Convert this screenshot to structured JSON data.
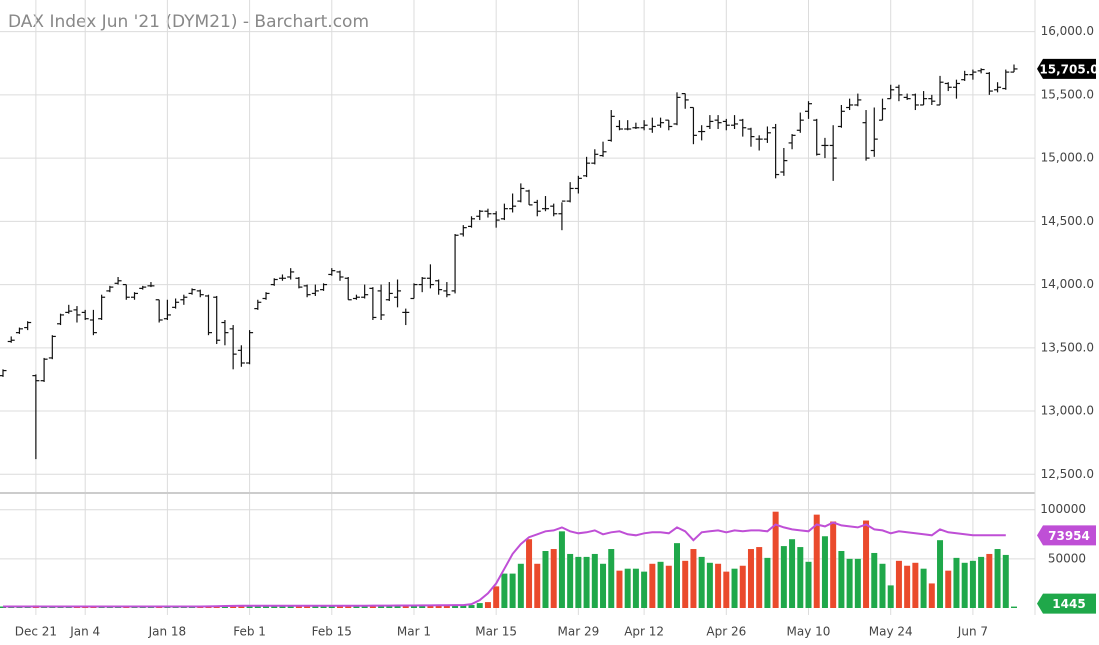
{
  "chart_data": {
    "type": "ohlc",
    "title": "DAX Index Jun '21 (DYM21) - Barchart.com",
    "categories": [
      null,
      null,
      null,
      null,
      "Dec 21",
      null,
      null,
      null,
      null,
      null,
      "Jan 4",
      null,
      null,
      null,
      null,
      null,
      null,
      null,
      null,
      null,
      "Jan 18",
      null,
      null,
      null,
      null,
      null,
      null,
      null,
      null,
      null,
      "Feb 1",
      null,
      null,
      null,
      null,
      null,
      null,
      null,
      null,
      null,
      "Feb 15",
      null,
      null,
      null,
      null,
      null,
      null,
      null,
      null,
      null,
      "Mar 1",
      null,
      null,
      null,
      null,
      null,
      null,
      null,
      null,
      null,
      "Mar 15",
      null,
      null,
      null,
      null,
      null,
      null,
      null,
      null,
      null,
      "Mar 29",
      null,
      null,
      null,
      null,
      null,
      null,
      null,
      "Apr 12",
      null,
      null,
      null,
      null,
      null,
      null,
      null,
      null,
      null,
      "Apr 26",
      null,
      null,
      null,
      null,
      null,
      null,
      null,
      null,
      null,
      "May 10",
      null,
      null,
      null,
      null,
      null,
      null,
      null,
      null,
      null,
      "May 24",
      null,
      null,
      null,
      null,
      null,
      null,
      null,
      null,
      null,
      "Jun 7",
      null,
      null,
      null,
      null,
      null
    ],
    "open": [
      13280,
      13550,
      13620,
      13660,
      13280,
      13240,
      13420,
      13690,
      13780,
      13800,
      13780,
      13720,
      13730,
      13950,
      14010,
      14000,
      13900,
      13970,
      13990,
      13880,
      13730,
      13820,
      13880,
      13930,
      13950,
      13910,
      13900,
      13700,
      13650,
      13480,
      13380,
      13810,
      13890,
      14000,
      14050,
      14060,
      14050,
      13990,
      13930,
      13960,
      14080,
      14100,
      14050,
      13890,
      13900,
      13970,
      13950,
      13880,
      13900,
      13780,
      13890,
      14000,
      14050,
      14030,
      13950,
      13950,
      14400,
      14460,
      14540,
      14580,
      14560,
      14520,
      14600,
      14660,
      14740,
      14650,
      14600,
      14620,
      14560,
      14660,
      14760,
      14860,
      14960,
      15020,
      15140,
      15250,
      15230,
      15240,
      15240,
      15230,
      15260,
      15300,
      15270,
      15510,
      15400,
      15210,
      15250,
      15300,
      15290,
      15260,
      15300,
      15230,
      15150,
      15150,
      15240,
      14890,
      15120,
      15220,
      15370,
      15300,
      15100,
      15100,
      15250,
      15400,
      15420,
      15280,
      15060,
      15300,
      15470,
      15560,
      15480,
      15500,
      15420,
      15470,
      15420,
      15590,
      15560,
      15620,
      15660,
      15690,
      15670,
      15540,
      15550,
      15680
    ],
    "high": [
      13330,
      13590,
      13660,
      13710,
      13290,
      13420,
      13600,
      13770,
      13840,
      13830,
      13800,
      13800,
      13920,
      13990,
      14060,
      14000,
      13940,
      13990,
      14020,
      13880,
      13880,
      13890,
      13920,
      13970,
      13960,
      13920,
      13910,
      13720,
      13680,
      13520,
      13640,
      13880,
      13940,
      14050,
      14080,
      14130,
      14060,
      14000,
      14000,
      14010,
      14130,
      14110,
      14060,
      13920,
      14000,
      13980,
      14000,
      14020,
      14040,
      13810,
      14010,
      14060,
      14160,
      14040,
      14020,
      14400,
      14470,
      14540,
      14590,
      14600,
      14580,
      14640,
      14720,
      14800,
      14750,
      14670,
      14700,
      14640,
      14650,
      14810,
      14860,
      15010,
      15070,
      15130,
      15380,
      15300,
      15300,
      15280,
      15300,
      15320,
      15320,
      15300,
      15520,
      15510,
      15400,
      15260,
      15340,
      15340,
      15310,
      15340,
      15310,
      15240,
      15180,
      15250,
      15270,
      15080,
      15190,
      15360,
      15450,
      15310,
      15160,
      15260,
      15420,
      15470,
      15510,
      15380,
      15400,
      15470,
      15580,
      15580,
      15510,
      15510,
      15530,
      15500,
      15650,
      15600,
      15620,
      15690,
      15700,
      15710,
      15680,
      15600,
      15700,
      15740
    ],
    "low": [
      13270,
      13540,
      13610,
      13640,
      12620,
      13230,
      13410,
      13680,
      13770,
      13700,
      13720,
      13600,
      13720,
      13940,
      14000,
      13880,
      13880,
      13960,
      13980,
      13700,
      13720,
      13810,
      13840,
      13920,
      13900,
      13600,
      13530,
      13520,
      13330,
      13350,
      13370,
      13800,
      13880,
      13990,
      14030,
      14040,
      13970,
      13900,
      13910,
      13950,
      14070,
      14030,
      13880,
      13880,
      13890,
      13720,
      13720,
      13870,
      13820,
      13680,
      13890,
      13940,
      13970,
      13920,
      13900,
      13930,
      14380,
      14450,
      14510,
      14530,
      14450,
      14510,
      14570,
      14650,
      14630,
      14540,
      14580,
      14540,
      14430,
      14650,
      14720,
      14850,
      14950,
      15010,
      15130,
      15220,
      15220,
      15230,
      15220,
      15200,
      15240,
      15220,
      15260,
      15390,
      15110,
      15140,
      15230,
      15230,
      15220,
      15230,
      15170,
      15090,
      15060,
      15120,
      14840,
      14860,
      15070,
      15200,
      15310,
      15020,
      15000,
      14820,
      15240,
      15380,
      15410,
      14980,
      15010,
      15300,
      15470,
      15450,
      15460,
      15380,
      15420,
      15420,
      15420,
      15530,
      15470,
      15610,
      15620,
      15670,
      15500,
      15520,
      15540,
      15680
    ],
    "close": [
      13320,
      13560,
      13650,
      13700,
      13240,
      13410,
      13590,
      13760,
      13790,
      13760,
      13730,
      13620,
      13900,
      13980,
      14030,
      13900,
      13930,
      13980,
      13990,
      13720,
      13760,
      13860,
      13900,
      13960,
      13920,
      13620,
      13560,
      13620,
      13450,
      13380,
      13620,
      13860,
      13930,
      14040,
      14050,
      14100,
      13980,
      13920,
      13950,
      14000,
      14110,
      14060,
      13880,
      13900,
      13920,
      13740,
      13760,
      13930,
      13950,
      13780,
      14000,
      14050,
      14000,
      13960,
      13920,
      14390,
      14450,
      14520,
      14580,
      14560,
      14510,
      14600,
      14620,
      14760,
      14630,
      14580,
      14600,
      14560,
      14660,
      14760,
      14840,
      14960,
      15030,
      15050,
      15330,
      15230,
      15230,
      15240,
      15260,
      15250,
      15280,
      15250,
      15480,
      15460,
      15180,
      15210,
      15290,
      15280,
      15260,
      15270,
      15240,
      15170,
      15150,
      15200,
      14870,
      14980,
      15180,
      15300,
      15430,
      15030,
      15100,
      15000,
      15370,
      15420,
      15460,
      15000,
      15150,
      15390,
      15540,
      15500,
      15470,
      15420,
      15470,
      15450,
      15600,
      15560,
      15590,
      15660,
      15680,
      15700,
      15530,
      15560,
      15680,
      15705
    ],
    "close_labels": {
      "123": "15,705.0"
    },
    "color": "#111111",
    "ylim": [
      12360,
      16250
    ],
    "yticks": [
      {
        "value": 16000,
        "label": "16,000.0"
      },
      {
        "value": 15500,
        "label": "15,500.0"
      },
      {
        "value": 15000,
        "label": "15,000.0"
      },
      {
        "value": 14500,
        "label": "14,500.0"
      },
      {
        "value": 14000,
        "label": "14,000.0"
      },
      {
        "value": 13500,
        "label": "13,500.0"
      },
      {
        "value": 13000,
        "label": "13,000.0"
      },
      {
        "value": 12500,
        "label": "12,500.0"
      }
    ],
    "grid": true,
    "volume": {
      "up_color": "#1fa84a",
      "down_color": "#ea4a2c",
      "values": [
        1500,
        1600,
        1400,
        1800,
        2600,
        1700,
        1200,
        900,
        800,
        1100,
        1500,
        1600,
        1400,
        1700,
        1500,
        1600,
        1500,
        1400,
        1300,
        1700,
        1500,
        1400,
        1600,
        1500,
        1700,
        2000,
        1800,
        2100,
        2400,
        2200,
        2000,
        1900,
        1800,
        2100,
        1900,
        1700,
        2000,
        2100,
        1900,
        1800,
        2000,
        2200,
        2100,
        1900,
        2300,
        2400,
        2500,
        2200,
        2600,
        2800,
        2500,
        2400,
        2700,
        2900,
        3100,
        3500,
        3000,
        3000,
        5000,
        6000,
        22000,
        35000,
        35000,
        45000,
        70000,
        45000,
        58000,
        60000,
        78000,
        55000,
        52000,
        52000,
        55000,
        45000,
        60000,
        38000,
        40000,
        40000,
        37000,
        45000,
        47000,
        43000,
        66000,
        48000,
        60000,
        52000,
        46000,
        45000,
        37000,
        40000,
        43000,
        60000,
        62000,
        51000,
        98000,
        63000,
        70000,
        62000,
        47000,
        95000,
        73000,
        88000,
        58000,
        50000,
        50000,
        89000,
        56000,
        45000,
        23000,
        48000,
        43000,
        46000,
        40000,
        25000,
        69000,
        38000,
        51000,
        46000,
        48000,
        52000,
        55000,
        60000,
        54000,
        1445
      ],
      "ma": {
        "color": "#bf4fd6",
        "values": [
          1500,
          1500,
          1500,
          1500,
          1500,
          1500,
          1500,
          1500,
          1500,
          1500,
          1500,
          1500,
          1500,
          1500,
          1500,
          1500,
          1500,
          1500,
          1500,
          1500,
          1500,
          1500,
          1500,
          1500,
          1500,
          1600,
          1800,
          2000,
          2100,
          2200,
          2200,
          2200,
          2200,
          2200,
          2200,
          2200,
          2200,
          2200,
          2200,
          2200,
          2200,
          2200,
          2300,
          2300,
          2300,
          2400,
          2400,
          2400,
          2500,
          2500,
          2500,
          2600,
          2600,
          2700,
          2800,
          2900,
          3000,
          4000,
          8000,
          15000,
          25000,
          40000,
          55000,
          65000,
          72000,
          75000,
          78000,
          79000,
          82000,
          78000,
          76000,
          77000,
          79000,
          75000,
          77000,
          78000,
          75000,
          74000,
          76000,
          77000,
          77000,
          76000,
          82000,
          78000,
          69000,
          77000,
          78000,
          79000,
          77000,
          79000,
          78000,
          79000,
          79000,
          78000,
          85000,
          82000,
          80000,
          79000,
          78000,
          85000,
          83000,
          87000,
          84000,
          83000,
          82000,
          85000,
          80000,
          79000,
          76000,
          78000,
          77000,
          76000,
          75000,
          74000,
          80000,
          77000,
          76000,
          75000,
          74000,
          74000,
          74000,
          74000,
          73954,
          null
        ]
      },
      "ylim": [
        0,
        116000
      ],
      "yticks": [
        100000,
        50000
      ]
    }
  }
}
